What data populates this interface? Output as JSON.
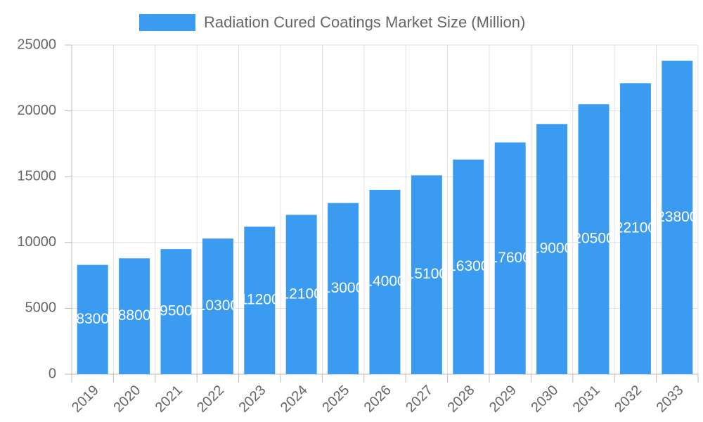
{
  "chart_data": {
    "type": "bar",
    "categories": [
      "2019",
      "2020",
      "2021",
      "2022",
      "2023",
      "2024",
      "2025",
      "2026",
      "2027",
      "2028",
      "2029",
      "2030",
      "2031",
      "2032",
      "2033"
    ],
    "series": [
      {
        "name": "Radiation Cured Coatings Market Size (Million)",
        "color": "#3a9bf0",
        "values": [
          8300,
          8800,
          9500,
          10300,
          11200,
          12100,
          13000,
          14000,
          15100,
          16300,
          17600,
          19000,
          20500,
          22100,
          23800
        ]
      }
    ],
    "ylim": [
      0,
      25000
    ],
    "yticks": [
      0,
      5000,
      10000,
      15000,
      20000,
      25000
    ],
    "grid": true,
    "legend": "top"
  }
}
